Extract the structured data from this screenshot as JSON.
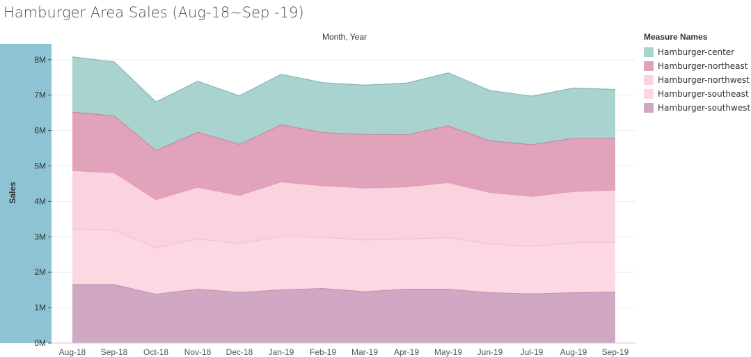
{
  "title": "Hamburger Area Sales (Aug-18~Sep -19)",
  "column_header": "Month, Year",
  "legend": {
    "title": "Measure Names",
    "items": [
      {
        "label": "Hamburger-center",
        "color": "#a9d3cf"
      },
      {
        "label": "Hamburger-northeast",
        "color": "#e1a3bb"
      },
      {
        "label": "Hamburger-northwest",
        "color": "#fbd3df"
      },
      {
        "label": "Hamburger-southeast",
        "color": "#fcd8e3"
      },
      {
        "label": "Hamburger-southwest",
        "color": "#d0a8c3"
      }
    ]
  },
  "chart_data": {
    "type": "area",
    "stacked": true,
    "title": "Hamburger Area Sales (Aug-18~Sep -19)",
    "xlabel": "Month, Year",
    "ylabel": "Sales",
    "ylim": [
      0,
      8500000
    ],
    "yticks": [
      "0M",
      "1M",
      "2M",
      "3M",
      "4M",
      "5M",
      "6M",
      "7M",
      "8M"
    ],
    "ytick_values": [
      0,
      1000000,
      2000000,
      3000000,
      4000000,
      5000000,
      6000000,
      7000000,
      8000000
    ],
    "categories": [
      "Aug-18",
      "Sep-18",
      "Oct-18",
      "Nov-18",
      "Dec-18",
      "Jan-19",
      "Feb-19",
      "Mar-19",
      "Apr-19",
      "May-19",
      "Jun-19",
      "Jul-19",
      "Aug-19",
      "Sep-19"
    ],
    "grid": true,
    "legend_position": "right",
    "series": [
      {
        "name": "Hamburger-southwest",
        "color": "#d0a8c3",
        "line": "#c095b2",
        "values": [
          1650000,
          1650000,
          1380000,
          1520000,
          1430000,
          1500000,
          1540000,
          1450000,
          1520000,
          1520000,
          1420000,
          1390000,
          1420000,
          1440000
        ]
      },
      {
        "name": "Hamburger-southeast",
        "color": "#fcd8e3",
        "line": "#f2c2d1",
        "values": [
          1570000,
          1540000,
          1310000,
          1420000,
          1380000,
          1510000,
          1450000,
          1460000,
          1420000,
          1460000,
          1380000,
          1340000,
          1410000,
          1410000
        ]
      },
      {
        "name": "Hamburger-northwest",
        "color": "#fbd3df",
        "line": "#e59cb4",
        "values": [
          1650000,
          1620000,
          1360000,
          1460000,
          1360000,
          1540000,
          1450000,
          1470000,
          1470000,
          1550000,
          1450000,
          1410000,
          1450000,
          1470000
        ]
      },
      {
        "name": "Hamburger-northeast",
        "color": "#e1a3bb",
        "line": "#c7879f",
        "values": [
          1650000,
          1600000,
          1380000,
          1550000,
          1440000,
          1610000,
          1500000,
          1510000,
          1470000,
          1600000,
          1460000,
          1460000,
          1500000,
          1460000
        ]
      },
      {
        "name": "Hamburger-center",
        "color": "#a9d3cf",
        "line": "#86b7b3",
        "values": [
          1560000,
          1530000,
          1380000,
          1440000,
          1370000,
          1430000,
          1410000,
          1390000,
          1460000,
          1500000,
          1420000,
          1370000,
          1420000,
          1380000
        ]
      }
    ]
  }
}
